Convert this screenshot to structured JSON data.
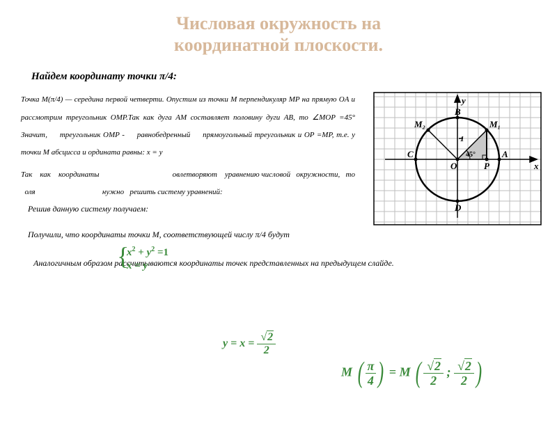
{
  "colors": {
    "title": "#d7b89a",
    "text": "#333333",
    "equation": "#3a8a3a",
    "grid": "#bdbdbd",
    "circle": "#000000",
    "fill": "#c8c8c8"
  },
  "title_line1": "Числовая окружность на",
  "title_line2": "координатной плоскости.",
  "subtitle": "Найдем координату точки π/4:",
  "body": "Точка M(π/4) — середина первой четверти. Опустим из точки M перпендикуляр MP на прямую OA и рассмотрим треугольник OMP.Так как дуга AM составляет половину дуги AB, то ∠MOP =45° Значит,     треугольник OMP -     равнобедренный     прямоугольный треугольник и OP =MP, т.е. у точки M абсцисса и ордината равны: x = y",
  "body2": "Так    как    координаты                                      овлетворяют    уравнению числовой   окружности,   то   оля                                   нужно   решить систему уравнений:",
  "solve": "Решив данную систему получаем:",
  "result": "Получили, что координаты точки M, соответствующей числу π/4 будут",
  "final": "Аналогичным образом рассчитываются координаты точек представленных на предыдущем слайде.",
  "eq": {
    "line1_a": "x",
    "line1_b": "2",
    "line1_c": " + ",
    "line1_d": "y",
    "line1_e": "2",
    "line1_f": " =1",
    "line2": "x = y",
    "yx": "y = x = ",
    "sqrt2": "2",
    "half": "2",
    "M": "M",
    "pi": "π",
    "four": "4",
    "semi": " ; "
  },
  "diagram": {
    "labels": {
      "y": "y",
      "x": "x",
      "A": "A",
      "B": "B",
      "C": "C",
      "D": "D",
      "O": "O",
      "P": "P",
      "M1": "M₁",
      "M2": "M₂",
      "one": "1",
      "angle": "45°"
    },
    "grid_step": 15,
    "circle_r": 60
  }
}
